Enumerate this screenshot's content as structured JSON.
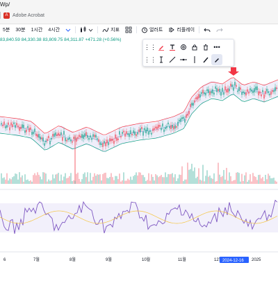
{
  "browser": {
    "url_fragment": "Wp/",
    "bookmark_label": "Adobe Acrobat"
  },
  "toolbar": {
    "intervals": [
      "5분",
      "30분",
      "1시간",
      "4시간"
    ],
    "active_interval_icon": "candles-icon",
    "indicators_label": "지표",
    "alerts_label": "얼러트",
    "replay_label": "리플레이"
  },
  "ohlc": "83,840.59  84,330.38  83,809.75  84,311.87  +471.28 (+0.56%)",
  "xaxis": {
    "labels": [
      "6",
      "7월",
      "8월",
      "9월",
      "10월",
      "11월",
      "12월",
      "2025"
    ],
    "highlight": "2024-12-16"
  },
  "colors": {
    "up": "#089981",
    "down": "#f23645",
    "band": "#e5e2f7",
    "rsi": "#7e57c2",
    "accent": "#2962ff"
  }
}
